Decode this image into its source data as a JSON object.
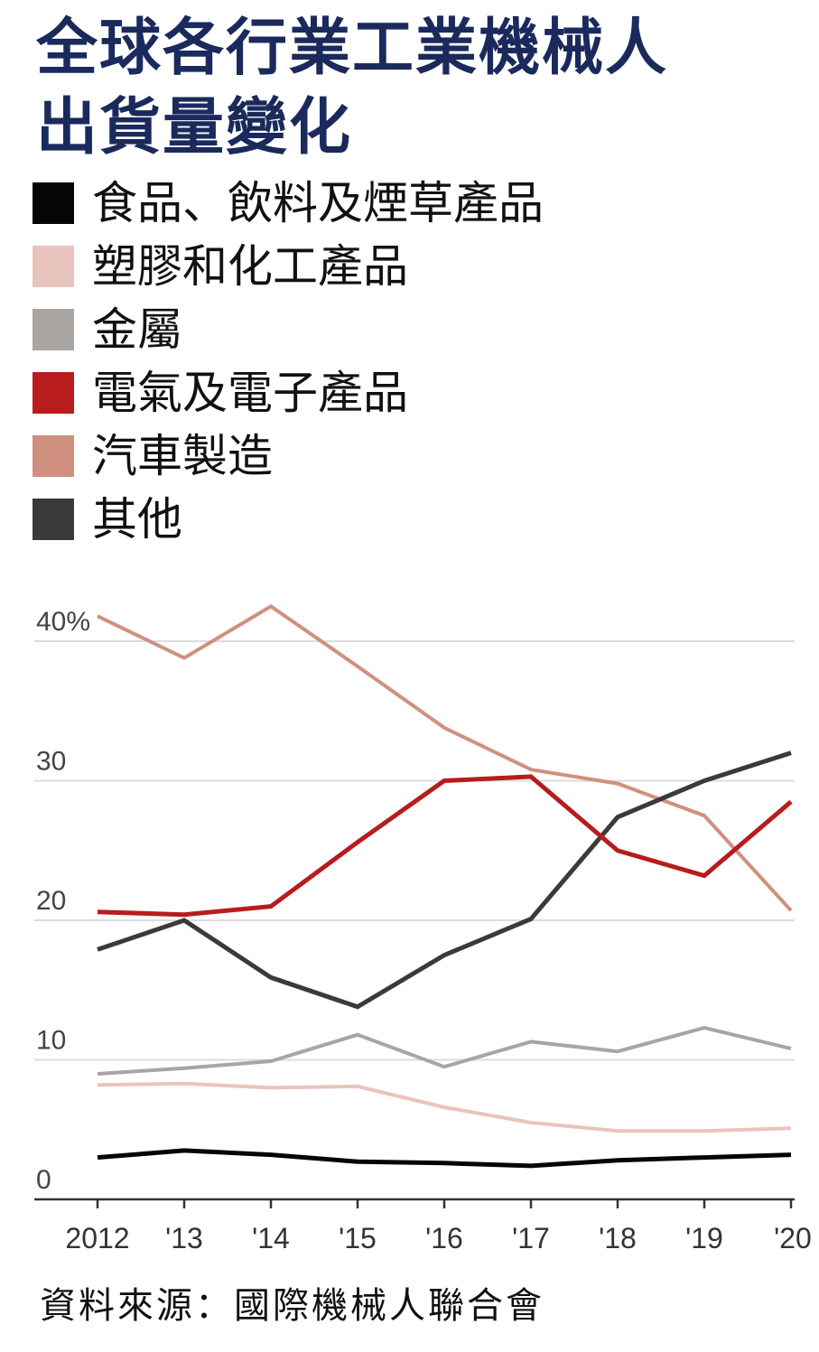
{
  "title_line1": "全球各行業工業機械人",
  "title_line2": "出貨量變化",
  "source": "資料來源：國際機械人聯合會",
  "colors": {
    "title": "#1b2a5c",
    "food": "#050505",
    "plastics": "#e8c4bd",
    "metal": "#a8a5a3",
    "electrical": "#b81c1c",
    "auto": "#d09080",
    "other": "#3a3a3a"
  },
  "chart_data": {
    "type": "line",
    "x": [
      "2012",
      "'13",
      "'14",
      "'15",
      "'16",
      "'17",
      "'18",
      "'19",
      "'20"
    ],
    "y_tick_labels": [
      "0",
      "10",
      "20",
      "30",
      "40%"
    ],
    "ylim": [
      0,
      40
    ],
    "grid": true,
    "legend_position": "top",
    "series": [
      {
        "name": "食品、飲料及煙草產品",
        "color": "#050505",
        "values": [
          3,
          3.5,
          3.2,
          2.7,
          2.6,
          2.4,
          2.8,
          3.0,
          3.2
        ]
      },
      {
        "name": "塑膠和化工產品",
        "color": "#e8c4bd",
        "values": [
          8.2,
          8.3,
          8.0,
          8.1,
          6.6,
          5.5,
          4.9,
          4.9,
          5.1
        ]
      },
      {
        "name": "金屬",
        "color": "#a8a5a3",
        "values": [
          9.0,
          9.4,
          9.9,
          11.8,
          9.5,
          11.3,
          10.6,
          12.3,
          10.8
        ]
      },
      {
        "name": "電氣及電子產品",
        "color": "#b81c1c",
        "values": [
          20.6,
          20.4,
          21.0,
          25.6,
          30.0,
          30.3,
          25.0,
          23.2,
          28.5
        ]
      },
      {
        "name": "汽車製造",
        "color": "#d09080",
        "values": [
          41.8,
          38.8,
          42.5,
          38.2,
          33.8,
          30.8,
          29.8,
          27.5,
          20.7
        ]
      },
      {
        "name": "其他",
        "color": "#3a3a3a",
        "values": [
          17.9,
          20.0,
          15.9,
          13.8,
          17.5,
          20.1,
          27.4,
          30.0,
          32.0
        ]
      }
    ]
  }
}
